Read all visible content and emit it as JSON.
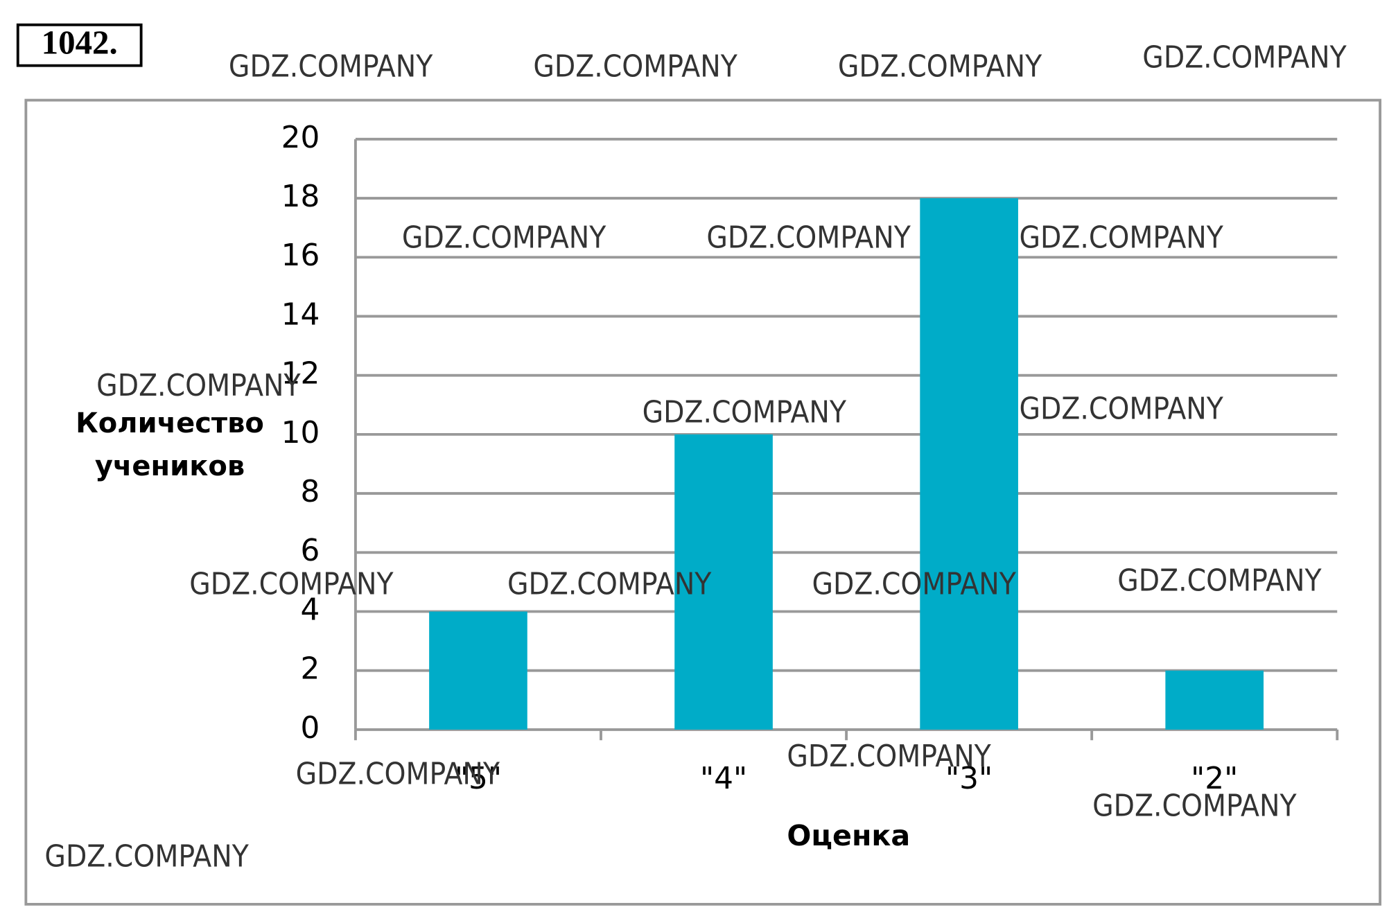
{
  "problem_number": "1042.",
  "watermark": "GDZ.COMPANY",
  "chart_data": {
    "type": "bar",
    "x_label": "Оценка",
    "y_label": "Количество учеников",
    "categories": [
      "\"5\"",
      "\"4\"",
      "\"3\"",
      "\"2\""
    ],
    "values": [
      4,
      10,
      18,
      2
    ],
    "color": "#00acc8",
    "ylim": [
      0,
      20
    ],
    "yticks": [
      0,
      2,
      4,
      6,
      8,
      10,
      12,
      14,
      16,
      18,
      20
    ],
    "grid": true
  }
}
